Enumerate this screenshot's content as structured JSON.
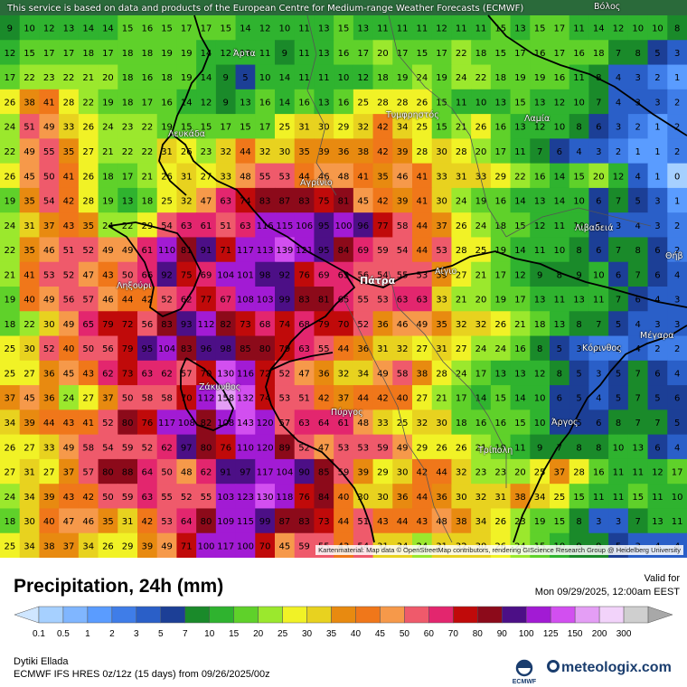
{
  "map": {
    "notice": "This service is based on data and products of the European Centre for Medium-range Weather Forecasts (ECMWF)",
    "attribution": "Kartenmaterial: Map data © OpenStreetMap contributors, rendering GIScience Research Group @ Heidelberg University",
    "places": [
      {
        "name": "Άρτα",
        "id": "arta"
      },
      {
        "name": "Λευκάδα",
        "id": "lefkada"
      },
      {
        "name": "Τυμφρηστός",
        "id": "tymfristos"
      },
      {
        "name": "Λαμία",
        "id": "lamia"
      },
      {
        "name": "Αγρίνιο",
        "id": "agrinio"
      },
      {
        "name": "Λιβαδειά",
        "id": "livadeia"
      },
      {
        "name": "Θήβ",
        "id": "thiva"
      },
      {
        "name": "Ληξούρι",
        "id": "lixouri"
      },
      {
        "name": "Πάτρα",
        "id": "patra"
      },
      {
        "name": "Αίγιο",
        "id": "aigio"
      },
      {
        "name": "Κόρινθος",
        "id": "korinthos"
      },
      {
        "name": "Μέγαρα",
        "id": "megara"
      },
      {
        "name": "Ζάκυνθος",
        "id": "zakynthos"
      },
      {
        "name": "Πύργος",
        "id": "pyrgos"
      },
      {
        "name": "Άργος",
        "id": "argos"
      },
      {
        "name": "Τρίπολη",
        "id": "tripoli"
      },
      {
        "name": "Βόλος",
        "id": "volos"
      }
    ],
    "grid_values": [
      [
        9,
        10,
        12,
        13,
        14,
        14,
        15,
        16,
        15,
        17,
        17,
        15,
        14,
        12,
        10,
        11,
        13,
        15,
        13,
        11,
        11,
        11,
        12,
        11,
        11,
        15,
        13,
        15,
        17,
        11,
        14,
        12,
        10,
        10,
        8
      ],
      [
        12,
        15,
        17,
        17,
        18,
        17,
        18,
        18,
        19,
        19,
        14,
        12,
        13,
        11,
        9,
        11,
        13,
        16,
        17,
        20,
        17,
        15,
        17,
        22,
        18,
        15,
        17,
        16,
        17,
        16,
        18,
        7,
        8,
        5,
        3
      ],
      [
        17,
        22,
        23,
        22,
        21,
        20,
        18,
        16,
        18,
        19,
        14,
        9,
        5,
        10,
        14,
        11,
        11,
        10,
        12,
        18,
        19,
        24,
        19,
        24,
        22,
        18,
        19,
        19,
        16,
        11,
        8,
        4,
        3,
        2,
        1
      ],
      [
        26,
        38,
        41,
        28,
        22,
        19,
        18,
        17,
        16,
        14,
        12,
        9,
        13,
        16,
        14,
        16,
        13,
        16,
        25,
        28,
        28,
        26,
        15,
        11,
        10,
        13,
        15,
        13,
        12,
        10,
        7,
        4,
        3,
        3,
        2
      ],
      [
        24,
        51,
        49,
        33,
        26,
        24,
        23,
        22,
        19,
        15,
        15,
        17,
        15,
        17,
        25,
        31,
        30,
        29,
        32,
        42,
        34,
        25,
        15,
        21,
        26,
        16,
        13,
        12,
        10,
        8,
        6,
        3,
        2,
        1,
        2
      ],
      [
        22,
        49,
        55,
        35,
        27,
        21,
        22,
        22,
        31,
        26,
        23,
        32,
        44,
        32,
        30,
        35,
        39,
        36,
        38,
        42,
        39,
        28,
        30,
        28,
        20,
        17,
        11,
        7,
        6,
        4,
        3,
        2,
        1,
        1,
        2
      ],
      [
        26,
        45,
        50,
        41,
        26,
        18,
        17,
        21,
        26,
        31,
        27,
        33,
        48,
        55,
        53,
        44,
        46,
        48,
        41,
        35,
        46,
        41,
        33,
        31,
        33,
        29,
        22,
        16,
        14,
        15,
        20,
        12,
        4,
        1,
        0
      ],
      [
        19,
        35,
        54,
        42,
        28,
        19,
        13,
        18,
        25,
        32,
        47,
        63,
        74,
        83,
        87,
        83,
        75,
        81,
        45,
        42,
        39,
        41,
        30,
        24,
        19,
        16,
        14,
        13,
        14,
        10,
        6,
        7,
        5,
        3,
        1
      ],
      [
        24,
        31,
        37,
        43,
        35,
        24,
        22,
        29,
        54,
        63,
        61,
        51,
        63,
        116,
        115,
        106,
        95,
        100,
        96,
        77,
        58,
        44,
        37,
        26,
        24,
        18,
        15,
        12,
        11,
        10,
        5,
        3,
        4,
        3,
        2
      ],
      [
        22,
        35,
        46,
        51,
        52,
        49,
        49,
        61,
        110,
        81,
        91,
        71,
        117,
        113,
        139,
        121,
        95,
        84,
        69,
        59,
        54,
        44,
        53,
        28,
        25,
        19,
        14,
        11,
        10,
        8,
        6,
        7,
        8,
        6,
        2
      ],
      [
        21,
        41,
        53,
        52,
        47,
        43,
        50,
        66,
        92,
        75,
        69,
        104,
        101,
        98,
        92,
        76,
        69,
        63,
        56,
        54,
        55,
        53,
        39,
        27,
        21,
        17,
        12,
        9,
        8,
        9,
        10,
        6,
        7,
        6,
        4
      ],
      [
        19,
        40,
        49,
        56,
        57,
        46,
        44,
        42,
        52,
        62,
        77,
        67,
        108,
        103,
        99,
        83,
        81,
        65,
        55,
        53,
        63,
        63,
        33,
        21,
        20,
        19,
        17,
        13,
        11,
        13,
        11,
        7,
        6,
        4,
        3
      ],
      [
        18,
        22,
        30,
        49,
        65,
        79,
        72,
        56,
        83,
        93,
        112,
        82,
        73,
        68,
        74,
        68,
        79,
        70,
        52,
        36,
        46,
        49,
        35,
        32,
        32,
        26,
        21,
        18,
        13,
        8,
        7,
        5,
        4,
        3,
        3
      ],
      [
        25,
        30,
        52,
        40,
        50,
        56,
        79,
        95,
        104,
        83,
        96,
        98,
        85,
        80,
        79,
        63,
        55,
        44,
        36,
        31,
        32,
        27,
        31,
        27,
        24,
        24,
        16,
        8,
        5,
        3,
        2,
        2,
        4,
        2,
        2
      ],
      [
        25,
        27,
        36,
        45,
        43,
        62,
        73,
        63,
        62,
        57,
        70,
        130,
        116,
        72,
        52,
        47,
        36,
        32,
        34,
        49,
        58,
        38,
        28,
        24,
        17,
        13,
        13,
        12,
        8,
        5,
        3,
        5,
        7,
        6,
        4
      ],
      [
        37,
        45,
        36,
        24,
        27,
        37,
        50,
        58,
        58,
        70,
        112,
        158,
        132,
        74,
        53,
        51,
        42,
        37,
        44,
        42,
        40,
        27,
        21,
        17,
        14,
        15,
        14,
        10,
        6,
        5,
        4,
        5,
        7,
        5,
        6
      ],
      [
        34,
        39,
        44,
        43,
        41,
        52,
        80,
        76,
        117,
        108,
        82,
        108,
        143,
        120,
        57,
        63,
        64,
        61,
        48,
        33,
        25,
        32,
        30,
        18,
        16,
        16,
        15,
        10,
        5,
        5,
        6,
        8,
        7,
        7,
        5
      ],
      [
        26,
        27,
        33,
        49,
        58,
        54,
        59,
        52,
        62,
        97,
        80,
        76,
        110,
        120,
        89,
        52,
        47,
        53,
        53,
        59,
        49,
        29,
        26,
        26,
        21,
        19,
        11,
        9,
        7,
        8,
        8,
        10,
        13,
        6,
        4
      ],
      [
        27,
        31,
        27,
        37,
        57,
        80,
        88,
        64,
        50,
        48,
        62,
        91,
        97,
        117,
        104,
        90,
        85,
        59,
        39,
        29,
        30,
        42,
        44,
        32,
        23,
        23,
        20,
        25,
        37,
        28,
        16,
        11,
        11,
        12,
        17
      ],
      [
        24,
        34,
        39,
        43,
        42,
        50,
        59,
        63,
        55,
        52,
        55,
        103,
        123,
        130,
        118,
        76,
        84,
        40,
        30,
        30,
        36,
        44,
        36,
        30,
        32,
        31,
        38,
        34,
        25,
        15,
        11,
        11,
        15,
        11,
        10
      ],
      [
        18,
        30,
        40,
        47,
        46,
        35,
        31,
        42,
        53,
        64,
        80,
        109,
        115,
        99,
        87,
        83,
        73,
        44,
        51,
        43,
        44,
        43,
        48,
        38,
        34,
        26,
        23,
        19,
        15,
        8,
        3,
        3,
        7,
        13,
        11
      ],
      [
        25,
        34,
        38,
        37,
        34,
        26,
        29,
        39,
        49,
        71,
        100,
        117,
        100,
        70,
        45,
        59,
        55,
        43,
        54,
        31,
        34,
        24,
        31,
        32,
        30,
        26,
        24,
        15,
        10,
        9,
        9,
        5,
        3,
        4,
        4
      ]
    ]
  },
  "legend": {
    "title": "Precipitation, 24h (mm)",
    "valid_label": "Valid for",
    "valid_date": "Mon 09/29/2025, 12:00am EEST",
    "ticks": [
      "0.1",
      "0.5",
      "1",
      "2",
      "3",
      "5",
      "7",
      "10",
      "15",
      "20",
      "25",
      "30",
      "35",
      "40",
      "45",
      "50",
      "60",
      "70",
      "80",
      "90",
      "100",
      "125",
      "150",
      "200",
      "300"
    ],
    "colors": [
      "#cfe6ff",
      "#a6d0ff",
      "#80b6ff",
      "#5a9cff",
      "#3f7de8",
      "#2a5fc8",
      "#1c3f96",
      "#1a8a2a",
      "#2fb32f",
      "#5fd12a",
      "#9be82d",
      "#f1f226",
      "#e8d21f",
      "#e88a10",
      "#f0771a",
      "#f6994a",
      "#ef5a6b",
      "#e3266e",
      "#c00a0a",
      "#8c0a1a",
      "#4c0f86",
      "#a21bd4",
      "#d24ff0",
      "#e49ef5",
      "#f2d3fa",
      "#cfcfcf",
      "#a8a8a8"
    ],
    "region": "Dytiki Ellada",
    "model": "ECMWF IFS HRES 0z/12z (15 days) from  09/26/2025/00z",
    "ecmwf": "ECMWF",
    "brand": "meteologix.com"
  }
}
